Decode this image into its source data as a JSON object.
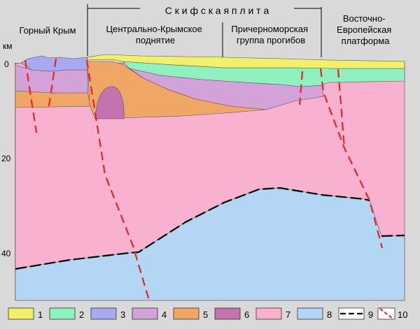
{
  "plate_title": "С к и ф с к а я   п л и т а",
  "regions": [
    {
      "lines": [
        "Горный Крым"
      ]
    },
    {
      "lines": [
        "Центрально-Крымское",
        "поднятие"
      ]
    },
    {
      "lines": [
        "Причерноморская",
        "группа прогибов"
      ]
    },
    {
      "lines": [
        "Восточно-",
        "Европейская",
        "платформа"
      ]
    }
  ],
  "depth_axis": {
    "unit": "км",
    "ticks": [
      "0",
      "20",
      "40"
    ]
  },
  "legend": [
    {
      "label": "1",
      "color": "#f2f06a",
      "kind": "swatch"
    },
    {
      "label": "2",
      "color": "#8ff0c0",
      "kind": "swatch"
    },
    {
      "label": "3",
      "color": "#a9a9f2",
      "kind": "swatch"
    },
    {
      "label": "4",
      "color": "#d3a2d8",
      "kind": "swatch"
    },
    {
      "label": "5",
      "color": "#f0a766",
      "kind": "swatch"
    },
    {
      "label": "6",
      "color": "#c473b0",
      "kind": "swatch"
    },
    {
      "label": "7",
      "color": "#f8b2cf",
      "kind": "swatch"
    },
    {
      "label": "8",
      "color": "#b2d6f4",
      "kind": "swatch"
    },
    {
      "label": "9",
      "color": "#000000",
      "kind": "moho-line"
    },
    {
      "label": "10",
      "color": "#e62424",
      "kind": "fault-line"
    }
  ]
}
